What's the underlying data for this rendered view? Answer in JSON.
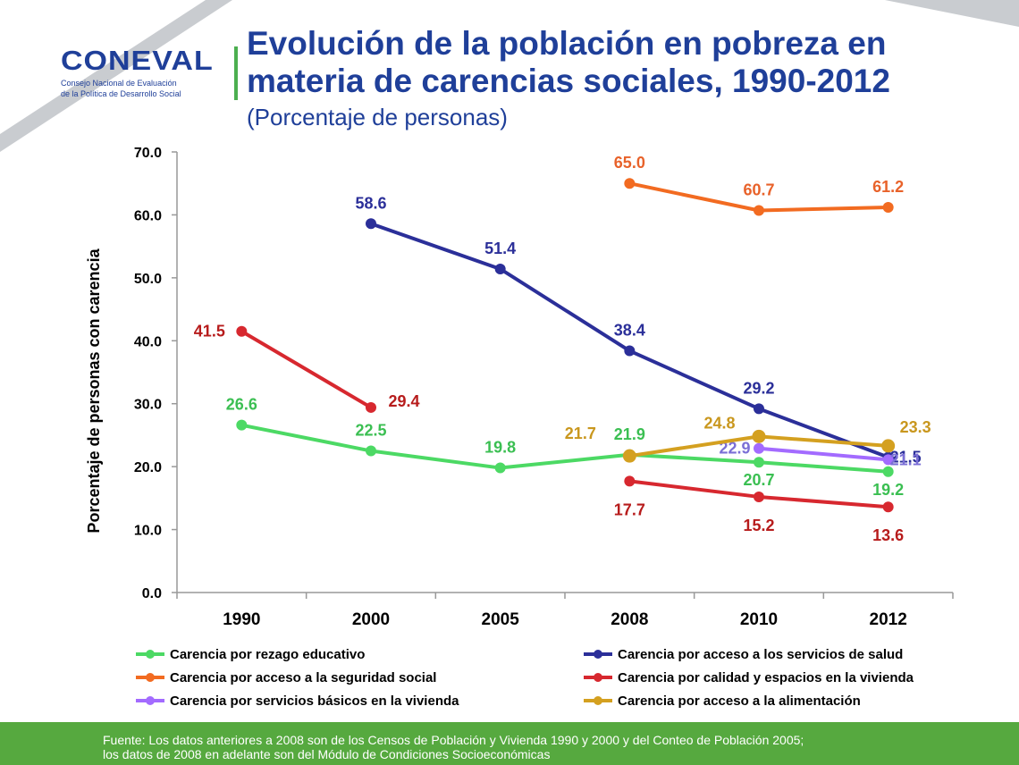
{
  "header": {
    "logo_text": "CONEVAL",
    "logo_subtitle_1": "Consejo Nacional de Evaluación",
    "logo_subtitle_2": "de la Política de Desarrollo Social",
    "title_line1": "Evolución de la población en pobreza en",
    "title_line2": "materia de carencias sociales, 1990-2012",
    "subtitle": "(Porcentaje de personas)"
  },
  "chart_data": {
    "type": "line",
    "ylabel": "Porcentaje de personas con carencia",
    "ylim": [
      0,
      70
    ],
    "yticks": [
      "0.0",
      "10.0",
      "20.0",
      "30.0",
      "40.0",
      "50.0",
      "60.0",
      "70.0"
    ],
    "categories": [
      "1990",
      "2000",
      "2005",
      "2008",
      "2010",
      "2012"
    ],
    "legend_position": "bottom",
    "series": [
      {
        "name": "Carencia por rezago educativo",
        "color": "#4cd964",
        "label_color": "#3bbf52",
        "values": [
          26.6,
          22.5,
          19.8,
          21.9,
          20.7,
          19.2
        ],
        "labels": [
          "26.6",
          "22.5",
          "19.8",
          "21.9",
          "20.7",
          "19.2"
        ]
      },
      {
        "name": "Carencia por acceso a los servicios de salud",
        "color": "#2b2f99",
        "label_color": "#2b2f99",
        "values": [
          null,
          58.6,
          51.4,
          38.4,
          29.2,
          21.5
        ],
        "labels": [
          "",
          "58.6",
          "51.4",
          "38.4",
          "29.2",
          "21.5"
        ]
      },
      {
        "name": "Carencia por acceso a la seguridad social",
        "color": "#f26b21",
        "label_color": "#e8622a",
        "values": [
          null,
          null,
          null,
          65.0,
          60.7,
          61.2
        ],
        "labels": [
          "",
          "",
          "",
          "65.0",
          "60.7",
          "61.2"
        ]
      },
      {
        "name": "Carencia por calidad y espacios en la vivienda",
        "color": "#d7282f",
        "label_color": "#b71c1c",
        "values": [
          41.5,
          29.4,
          null,
          17.7,
          15.2,
          13.6
        ],
        "labels": [
          "41.5",
          "29.4",
          "",
          "17.7",
          "15.2",
          "13.6"
        ]
      },
      {
        "name": "Carencia por servicios básicos en la vivienda",
        "color": "#a36bff",
        "label_color": "#7b6fd6",
        "values": [
          null,
          null,
          null,
          null,
          22.9,
          21.1
        ],
        "labels": [
          "",
          "",
          "",
          "",
          "22.9",
          "21.1"
        ]
      },
      {
        "name": "Carencia por acceso a la alimentación",
        "color": "#d4a020",
        "label_color": "#c9971e",
        "values": [
          null,
          null,
          null,
          21.7,
          24.8,
          23.3
        ],
        "labels": [
          "",
          "",
          "",
          "21.7",
          "24.8",
          "23.3"
        ]
      }
    ]
  },
  "footer": {
    "line1": "Fuente: Los datos anteriores a 2008 son de los Censos de Población y Vivienda 1990 y 2000 y del Conteo de Población 2005;",
    "line2": "los datos de 2008 en adelante son del Módulo de Condiciones Socioeconómicas"
  }
}
